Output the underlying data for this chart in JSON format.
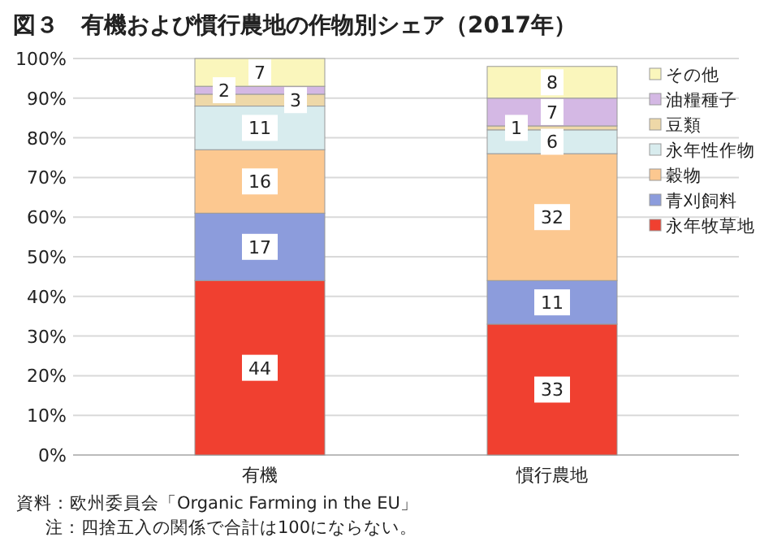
{
  "chart_data": {
    "type": "bar",
    "stacked": true,
    "title": "図３　有機および慣行農地の作物別シェア（2017年）",
    "categories": [
      "有機",
      "慣行農地"
    ],
    "series": [
      {
        "name": "永年牧草地",
        "color": "#f04030",
        "values": [
          44,
          33
        ]
      },
      {
        "name": "青刈飼料",
        "color": "#8c9cdc",
        "values": [
          17,
          11
        ]
      },
      {
        "name": "穀物",
        "color": "#fcc890",
        "values": [
          16,
          32
        ]
      },
      {
        "name": "永年性作物",
        "color": "#d8ecee",
        "values": [
          11,
          6
        ]
      },
      {
        "name": "豆類",
        "color": "#eed8a8",
        "values": [
          3,
          1
        ]
      },
      {
        "name": "油糧種子",
        "color": "#d4b8e4",
        "values": [
          2,
          7
        ]
      },
      {
        "name": "その他",
        "color": "#faf6bc",
        "values": [
          7,
          8
        ]
      }
    ],
    "ylim": [
      0,
      100
    ],
    "yticks": [
      {
        "value": 0,
        "label": "0%"
      },
      {
        "value": 10,
        "label": "10%"
      },
      {
        "value": 20,
        "label": "20%"
      },
      {
        "value": 30,
        "label": "30%"
      },
      {
        "value": 40,
        "label": "40%"
      },
      {
        "value": 50,
        "label": "50%"
      },
      {
        "value": 60,
        "label": "60%"
      },
      {
        "value": 70,
        "label": "70%"
      },
      {
        "value": 80,
        "label": "80%"
      },
      {
        "value": 90,
        "label": "90%"
      },
      {
        "value": 100,
        "label": "100%"
      }
    ],
    "grid": "y",
    "legend": "right",
    "data_labels": true,
    "annotations": [
      "資料：欧州委員会「Organic Farming in the EU」",
      "注：四捨五入の関係で合計は100にならない。"
    ]
  }
}
